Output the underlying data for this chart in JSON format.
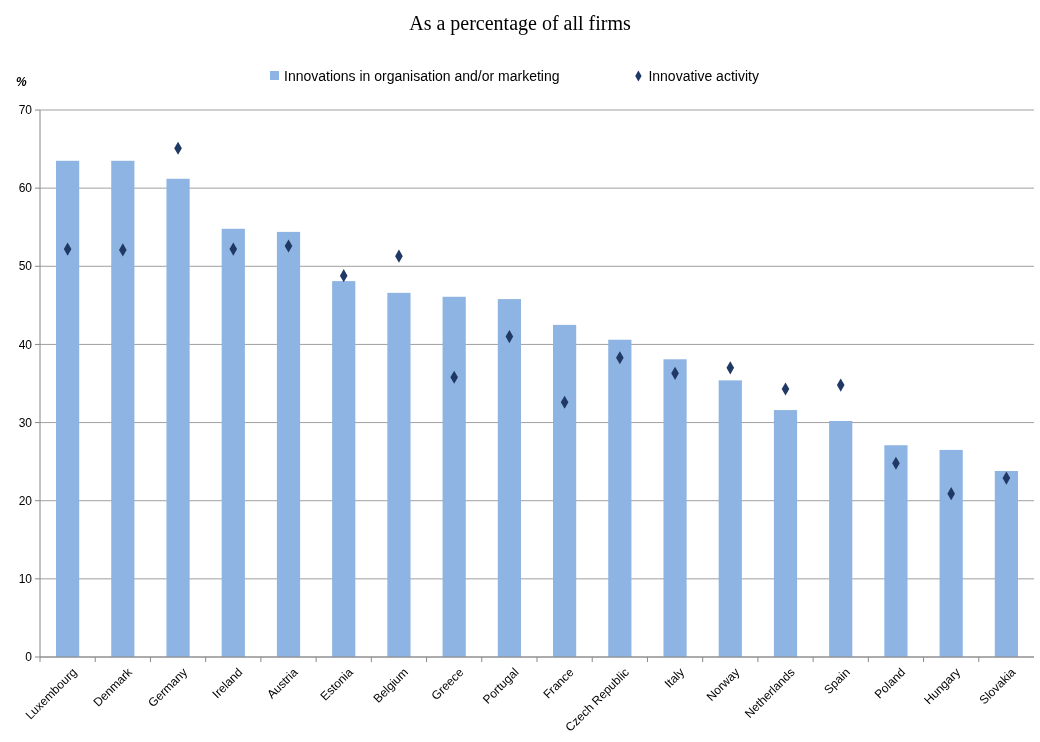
{
  "chart_data": {
    "type": "bar",
    "title": "As a percentage of all firms",
    "ylabel": "%",
    "categories": [
      "Luxembourg",
      "Denmark",
      "Germany",
      "Ireland",
      "Austria",
      "Estonia",
      "Belgium",
      "Greece",
      "Portugal",
      "France",
      "Czech Republic",
      "Italy",
      "Norway",
      "Netherlands",
      "Spain",
      "Poland",
      "Hungary",
      "Slovakia"
    ],
    "series": [
      {
        "name": "Innovations in organisation and/or marketing",
        "color": "#8db4e2",
        "values": [
          63.5,
          63.5,
          61.2,
          54.8,
          54.4,
          48.1,
          46.6,
          46.1,
          45.8,
          42.5,
          40.6,
          38.1,
          35.4,
          31.6,
          30.2,
          27.1,
          26.5,
          23.8
        ]
      },
      {
        "name": "Innovative activity",
        "type": "scatter",
        "marker": "diamond",
        "color": "#1f3864",
        "values": [
          52.2,
          52.1,
          65.1,
          52.2,
          52.6,
          48.8,
          51.3,
          35.8,
          41.0,
          32.6,
          38.3,
          36.3,
          37.0,
          34.3,
          34.8,
          24.8,
          20.9,
          22.9
        ]
      }
    ],
    "ylim": [
      0,
      70
    ],
    "yticks": [
      0,
      10,
      20,
      30,
      40,
      50,
      60,
      70
    ],
    "grid": "y",
    "legend": "top"
  }
}
